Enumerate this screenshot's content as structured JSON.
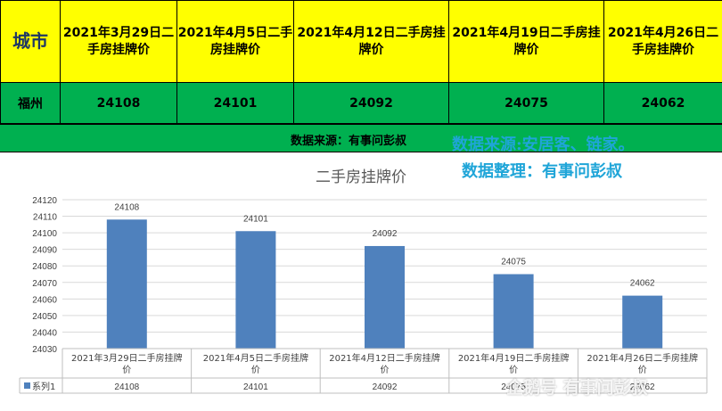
{
  "table": {
    "city_header": "城市",
    "date_headers": [
      "2021年3月29日二手房挂牌价",
      "2021年4月5日二手房挂牌价",
      "2021年4月12日二手房挂牌价",
      "2021年4月19日二手房挂牌价",
      "2021年4月26日二手房挂牌价"
    ],
    "city": "福州",
    "values": [
      "24108",
      "24101",
      "24092",
      "24075",
      "24062"
    ]
  },
  "source_label": "数据来源：有事问彭叔",
  "overlay": {
    "line1": "数据来源:安居客、链家。",
    "line2": "数据整理：有事问彭叔"
  },
  "watermark": "企鹅号 有事问彭叔",
  "colors": {
    "header_bg": "#ffff00",
    "row_bg": "#00b050",
    "bar": "#4f81bd",
    "overlay_text": "#1fa5d8"
  },
  "chart_data": {
    "type": "bar",
    "title": "二手房挂牌价",
    "categories": [
      "2021年3月29日二手房挂牌价",
      "2021年4月5日二手房挂牌价",
      "2021年4月12日二手房挂牌价",
      "2021年4月19日二手房挂牌价",
      "2021年4月26日二手房挂牌价"
    ],
    "series": [
      {
        "name": "系列1",
        "values": [
          24108,
          24101,
          24092,
          24075,
          24062
        ]
      }
    ],
    "ylim": [
      24030,
      24120
    ],
    "yticks": [
      24030,
      24040,
      24050,
      24060,
      24070,
      24080,
      24090,
      24100,
      24110,
      24120
    ],
    "data_labels": true,
    "data_table": true,
    "legend": "data-table-left",
    "grid": true
  }
}
